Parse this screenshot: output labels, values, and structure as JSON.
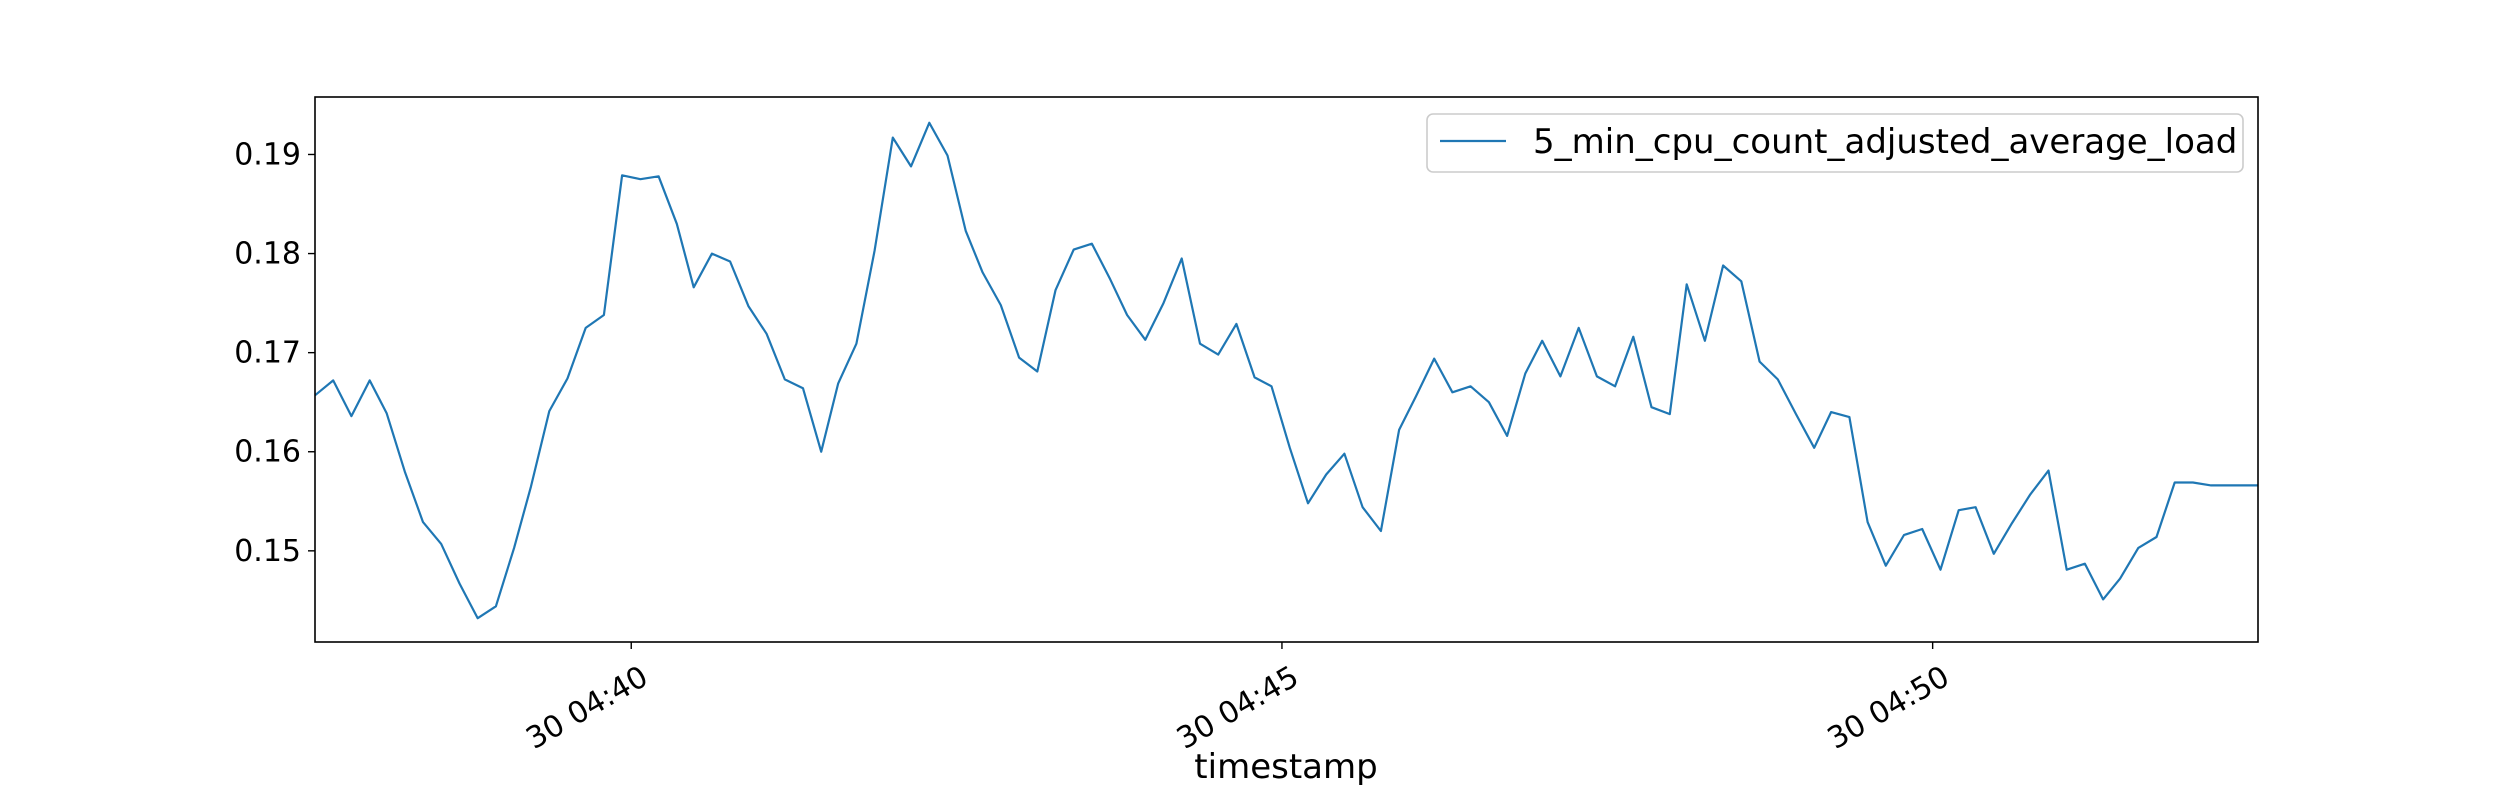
{
  "chart_data": {
    "type": "line",
    "xlabel": "timestamp",
    "ylabel": "",
    "title": "",
    "x_tick_labels": [
      "30 04:40",
      "30 04:45",
      "30 04:50"
    ],
    "x_tick_minutes": [
      40,
      45,
      50
    ],
    "y_ticks": [
      0.15,
      0.16,
      0.17,
      0.18,
      0.19
    ],
    "y_tick_labels": [
      "0.15",
      "0.16",
      "0.17",
      "0.18",
      "0.19"
    ],
    "xlim_minutes": [
      37.57,
      52.5
    ],
    "ylim": [
      0.1408,
      0.1958
    ],
    "legend_position": "top-right",
    "grid": false,
    "x_minutes": [
      37.57,
      37.71,
      37.85,
      37.99,
      38.12,
      38.26,
      38.4,
      38.54,
      38.68,
      38.82,
      38.96,
      39.1,
      39.23,
      39.37,
      39.51,
      39.65,
      39.79,
      39.93,
      40.07,
      40.21,
      40.35,
      40.48,
      40.62,
      40.76,
      40.9,
      41.04,
      41.18,
      41.32,
      41.46,
      41.59,
      41.73,
      41.87,
      42.01,
      42.15,
      42.29,
      42.43,
      42.57,
      42.7,
      42.84,
      42.98,
      43.12,
      43.26,
      43.4,
      43.54,
      43.68,
      43.81,
      43.95,
      44.09,
      44.23,
      44.37,
      44.51,
      44.65,
      44.79,
      44.92,
      45.06,
      45.2,
      45.34,
      45.48,
      45.62,
      45.76,
      45.9,
      46.03,
      46.17,
      46.31,
      46.45,
      46.59,
      46.73,
      46.87,
      47.0,
      47.14,
      47.28,
      47.42,
      47.56,
      47.7,
      47.84,
      47.98,
      48.11,
      48.25,
      48.39,
      48.53,
      48.67,
      48.81,
      48.95,
      49.09,
      49.22,
      49.36,
      49.5,
      49.64,
      49.78,
      49.92,
      50.06,
      50.2,
      50.33,
      50.47,
      50.61,
      50.75,
      50.89,
      51.03,
      51.17,
      51.31,
      51.44,
      51.58,
      51.72,
      51.86,
      52.0,
      52.14,
      52.28,
      52.41,
      52.5
    ],
    "series": [
      {
        "name": "5_min_cpu_count_adjusted_average_load",
        "color": "#1f77b4",
        "values": [
          0.1657,
          0.1672,
          0.1636,
          0.1672,
          0.1639,
          0.158,
          0.1529,
          0.1507,
          0.1467,
          0.1432,
          0.1444,
          0.1503,
          0.1565,
          0.1641,
          0.1674,
          0.1725,
          0.1738,
          0.1879,
          0.1875,
          0.1878,
          0.183,
          0.1766,
          0.18,
          0.1792,
          0.1747,
          0.1719,
          0.1673,
          0.1664,
          0.16,
          0.1669,
          0.1709,
          0.1803,
          0.1917,
          0.1888,
          0.1932,
          0.1899,
          0.1823,
          0.1781,
          0.1748,
          0.1695,
          0.1681,
          0.1763,
          0.1804,
          0.181,
          0.1774,
          0.1738,
          0.1713,
          0.175,
          0.1795,
          0.1709,
          0.1698,
          0.1729,
          0.1675,
          0.1666,
          0.1604,
          0.1548,
          0.1577,
          0.1598,
          0.1544,
          0.152,
          0.1622,
          0.1656,
          0.1694,
          0.166,
          0.1666,
          0.165,
          0.1616,
          0.1679,
          0.1712,
          0.1676,
          0.1725,
          0.1676,
          0.1666,
          0.1716,
          0.1645,
          0.1638,
          0.1769,
          0.1712,
          0.1788,
          0.1772,
          0.1691,
          0.1673,
          0.1638,
          0.1604,
          0.164,
          0.1635,
          0.1529,
          0.1485,
          0.1516,
          0.1522,
          0.1481,
          0.1541,
          0.1544,
          0.1497,
          0.1528,
          0.1557,
          0.1581,
          0.1481,
          0.1487,
          0.1451,
          0.1472,
          0.1503,
          0.1514,
          0.1569,
          0.1569,
          0.1566,
          0.1566,
          0.1566,
          0.1566
        ]
      }
    ]
  }
}
